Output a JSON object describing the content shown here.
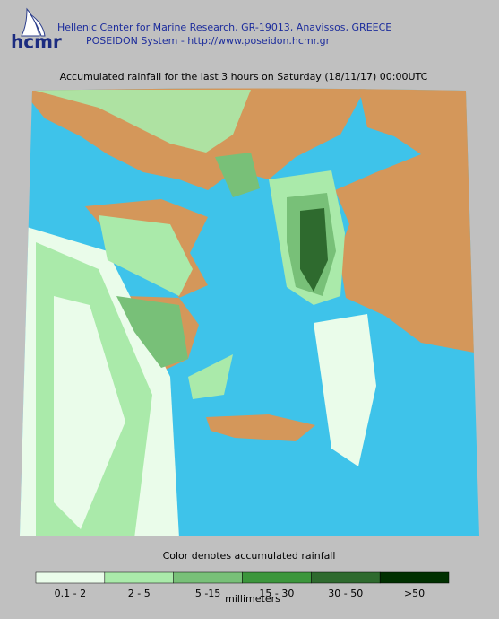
{
  "header": {
    "logo": "hcmr",
    "line1": "Hellenic Center for Marine Research, GR-19013, Anavissos, GREECE",
    "line2": "POSEIDON System - http://www.poseidon.hcmr.gr"
  },
  "map": {
    "title": "Accumulated rainfall for the last 3 hours on Saturday (18/11/17) 00:00UTC"
  },
  "legend": {
    "caption": "Color denotes accumulated rainfall",
    "unit": "millimeters",
    "items": [
      {
        "label": "0.1 - 2",
        "color": "#eafcea"
      },
      {
        "label": "2 - 5",
        "color": "#aaeaaa"
      },
      {
        "label": "5 -15",
        "color": "#78c078"
      },
      {
        "label": "15 - 30",
        "color": "#3c963c"
      },
      {
        "label": "30 - 50",
        "color": "#2e6a2e"
      },
      {
        "label": ">50",
        "color": "#003000"
      }
    ]
  }
}
